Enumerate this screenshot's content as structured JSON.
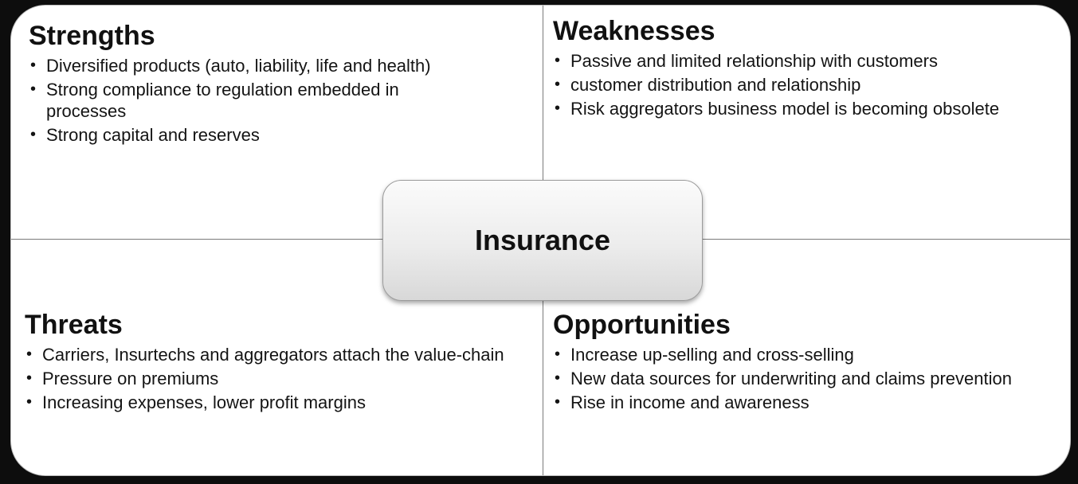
{
  "center": {
    "label": "Insurance"
  },
  "strengths": {
    "title": "Strengths",
    "items": [
      "Diversified products (auto, liability, life and health)",
      "Strong compliance to regulation embedded in processes",
      "Strong capital and reserves"
    ]
  },
  "weaknesses": {
    "title": "Weaknesses",
    "items": [
      "Passive and limited relationship with customers",
      "customer distribution and relationship",
      "Risk aggregators business model is becoming obsolete"
    ]
  },
  "threats": {
    "title": "Threats",
    "items": [
      "Carriers, Insurtechs and aggregators attach the value-chain",
      "Pressure on premiums",
      "Increasing expenses, lower profit margins"
    ]
  },
  "opportunities": {
    "title": "Opportunities",
    "items": [
      "Increase up-selling and cross-selling",
      "New data sources for underwriting and claims prevention",
      "Rise in income and awareness"
    ]
  },
  "bullet_char": "•"
}
